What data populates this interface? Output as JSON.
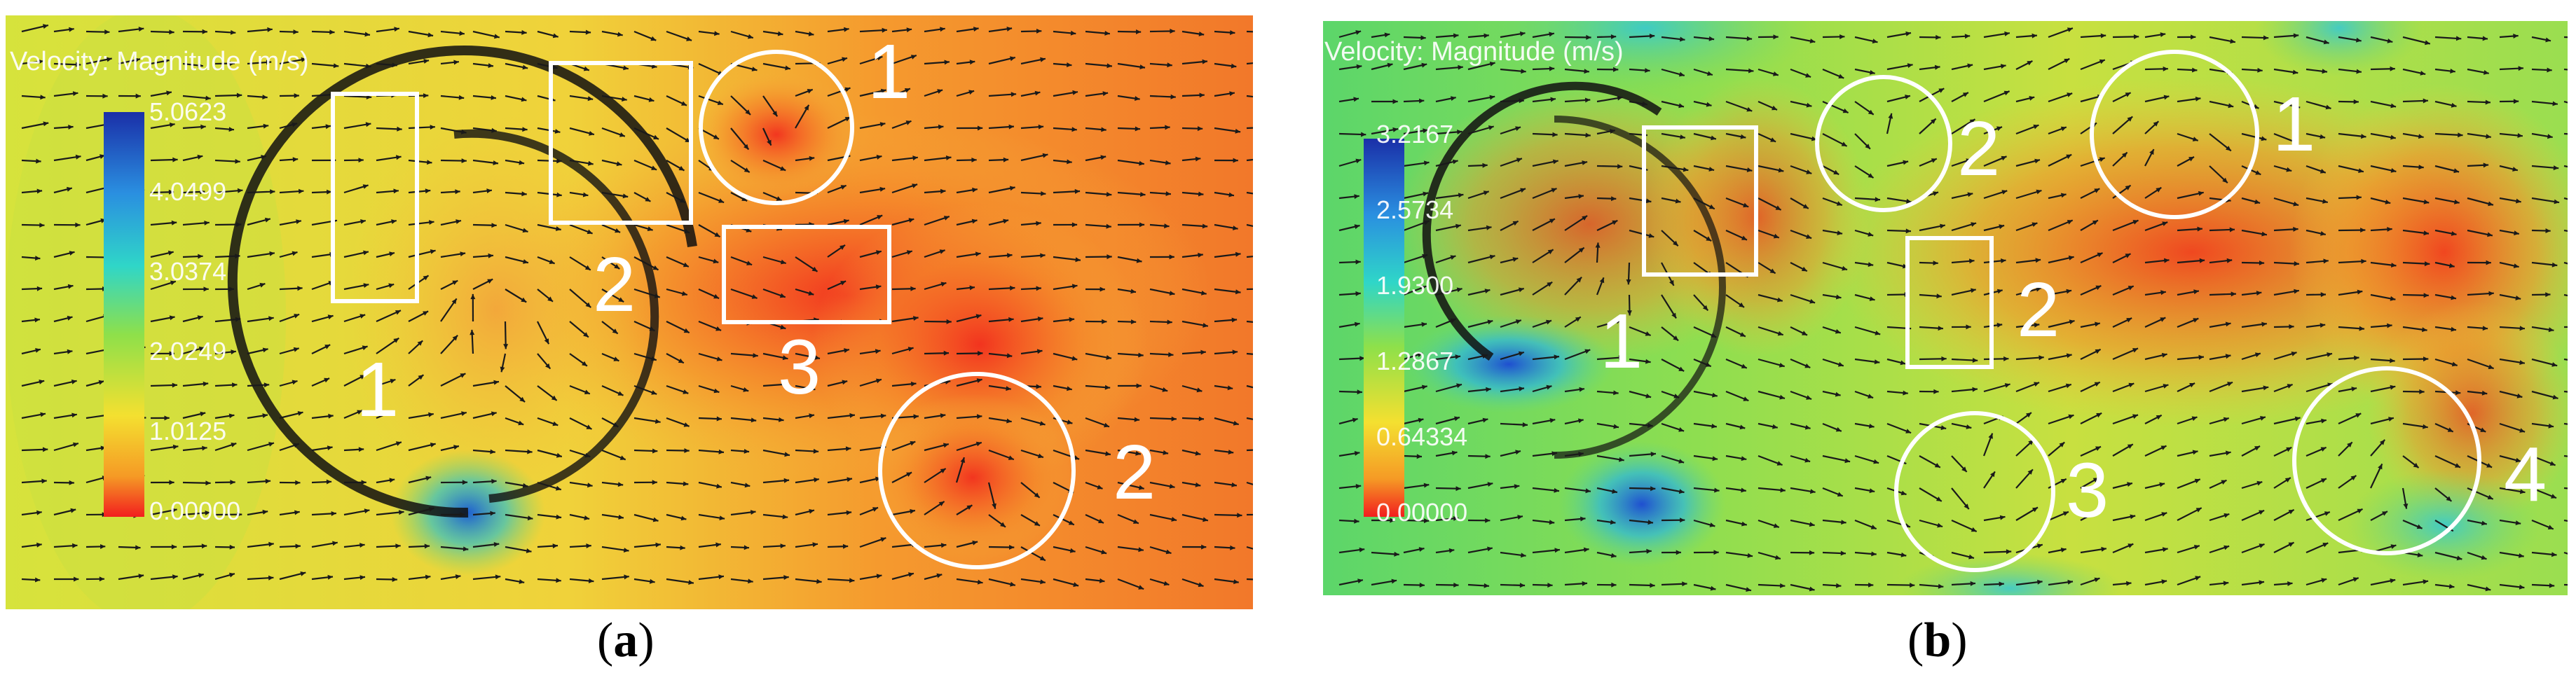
{
  "panels": [
    {
      "id": "a",
      "caption": "a",
      "legend_title": "Velocity: Magnitude (m/s)",
      "legend_ticks": [
        "5.0623",
        "4.0499",
        "3.0374",
        "2.0249",
        "1.0125",
        "0.00000"
      ],
      "markers": [
        {
          "shape": "rect",
          "label": "1"
        },
        {
          "shape": "rect",
          "label": "2"
        },
        {
          "shape": "circle",
          "label": "1"
        },
        {
          "shape": "rect",
          "label": "3"
        },
        {
          "shape": "circle",
          "label": "2"
        }
      ]
    },
    {
      "id": "b",
      "caption": "b",
      "legend_title": "Velocity: Magnitude (m/s)",
      "legend_ticks": [
        "3.2167",
        "2.5734",
        "1.9300",
        "1.2867",
        "0.64334",
        "0.00000"
      ],
      "markers": [
        {
          "shape": "rect",
          "label": "1"
        },
        {
          "shape": "circle",
          "label": "2"
        },
        {
          "shape": "rect",
          "label": "2"
        },
        {
          "shape": "circle",
          "label": "1"
        },
        {
          "shape": "circle",
          "label": "3"
        },
        {
          "shape": "circle",
          "label": "4"
        }
      ]
    }
  ],
  "colors": {
    "background_field": "#d8e23a",
    "low_velocity": "#f24a1e",
    "mid_velocity": "#f0c93a",
    "high_velocity": "#1f6fd0",
    "arrow": "#1a1a1a",
    "marker": "#ffffff"
  }
}
